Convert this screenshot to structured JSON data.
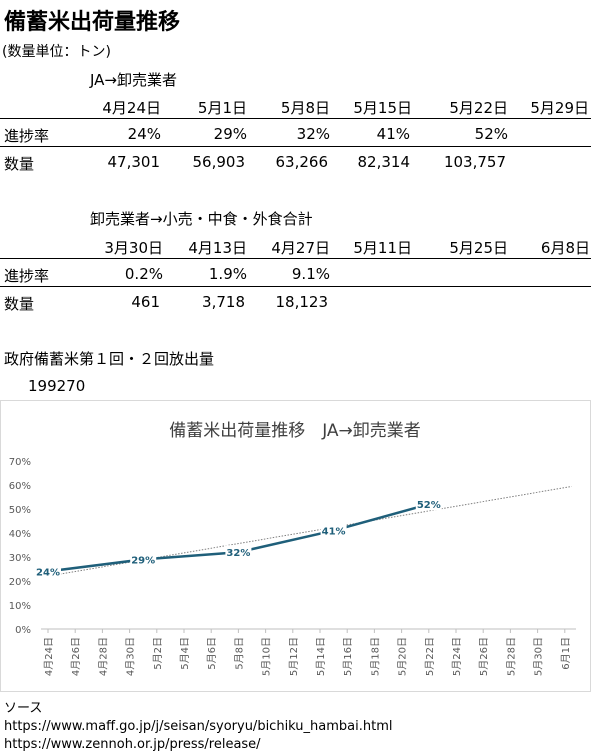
{
  "title": "備蓄米出荷量推移",
  "unit_note": "(数量単位：トン)",
  "section1": {
    "heading": "JA→卸売業者",
    "dates": [
      "4月24日",
      "5月1日",
      "5月8日",
      "5月15日",
      "5月22日",
      "5月29日"
    ],
    "row1_label": "進捗率",
    "row1": [
      "24%",
      "29%",
      "32%",
      "41%",
      "52%",
      ""
    ],
    "row2_label": "数量",
    "row2": [
      "47,301",
      "56,903",
      "63,266",
      "82,314",
      "103,757",
      ""
    ]
  },
  "section2": {
    "heading": "卸売業者→小売・中食・外食合計",
    "dates": [
      "3月30日",
      "4月13日",
      "4月27日",
      "5月11日",
      "5月25日",
      "6月8日"
    ],
    "row1_label": "進捗率",
    "row1": [
      "0.2%",
      "1.9%",
      "9.1%",
      "",
      "",
      ""
    ],
    "row2_label": "数量",
    "row2": [
      "461",
      "3,718",
      "18,123",
      "",
      "",
      ""
    ]
  },
  "release": {
    "label": "政府備蓄米第１回・２回放出量",
    "value": "199270"
  },
  "chart_data": {
    "type": "line",
    "title": "備蓄米出荷量推移　JA→卸売業者",
    "x": [
      "4月24日",
      "5月1日",
      "5月8日",
      "5月15日",
      "5月22日"
    ],
    "x_days": [
      0,
      7,
      14,
      21,
      28
    ],
    "values": [
      0.24,
      0.29,
      0.32,
      0.41,
      0.52
    ],
    "data_labels": [
      "24%",
      "29%",
      "32%",
      "41%",
      "52%"
    ],
    "trendline": true,
    "ylim": [
      0,
      0.7
    ],
    "yticks": [
      "0%",
      "10%",
      "20%",
      "30%",
      "40%",
      "50%",
      "60%",
      "70%"
    ],
    "xticks": [
      "4月24日",
      "4月26日",
      "4月28日",
      "4月30日",
      "5月2日",
      "5月4日",
      "5月6日",
      "5月8日",
      "5月10日",
      "5月12日",
      "5月14日",
      "5月16日",
      "5月18日",
      "5月20日",
      "5月22日",
      "5月24日",
      "5月26日",
      "5月28日",
      "5月30日",
      "6月1日"
    ],
    "line_color": "#1f5f7a",
    "trend_color": "#7f7f7f",
    "grid": false
  },
  "sources": {
    "label": "ソース",
    "links": [
      "https://www.maff.go.jp/j/seisan/syoryu/bichiku_hambai.html",
      "https://www.zennoh.or.jp/press/release/"
    ]
  }
}
